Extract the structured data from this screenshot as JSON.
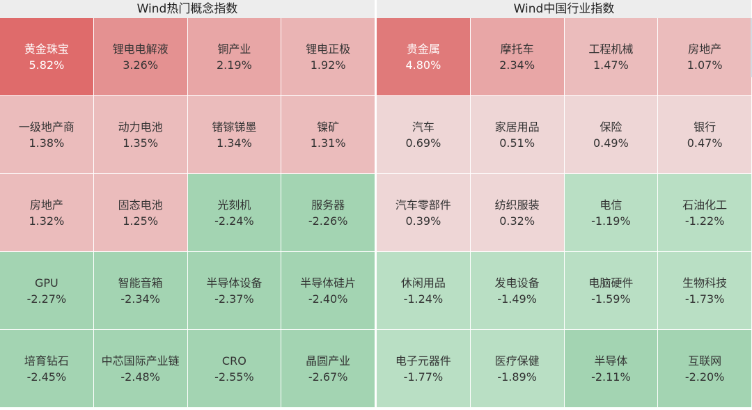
{
  "panels": [
    {
      "title": "Wind热门概念指数",
      "tiles": [
        {
          "name": "黄金珠宝",
          "change": "5.82%",
          "color": "#df6b6b",
          "light": true
        },
        {
          "name": "锂电电解液",
          "change": "3.26%",
          "color": "#e49191",
          "light": false
        },
        {
          "name": "铜产业",
          "change": "2.19%",
          "color": "#e8a6a6",
          "light": false
        },
        {
          "name": "锂电正极",
          "change": "1.92%",
          "color": "#eab4b4",
          "light": false
        },
        {
          "name": "一级地产商",
          "change": "1.38%",
          "color": "#ebbcbc",
          "light": false
        },
        {
          "name": "动力电池",
          "change": "1.35%",
          "color": "#ebbcbc",
          "light": false
        },
        {
          "name": "锗镓锑墨",
          "change": "1.34%",
          "color": "#ebbcbc",
          "light": false
        },
        {
          "name": "镍矿",
          "change": "1.31%",
          "color": "#ebbcbc",
          "light": false
        },
        {
          "name": "房地产",
          "change": "1.32%",
          "color": "#ebbcbc",
          "light": false
        },
        {
          "name": "固态电池",
          "change": "1.25%",
          "color": "#ebbcbc",
          "light": false
        },
        {
          "name": "光刻机",
          "change": "-2.24%",
          "color": "#a3d4b2",
          "light": false
        },
        {
          "name": "服务器",
          "change": "-2.26%",
          "color": "#a3d4b2",
          "light": false
        },
        {
          "name": "GPU",
          "change": "-2.27%",
          "color": "#a3d4b2",
          "light": false
        },
        {
          "name": "智能音箱",
          "change": "-2.34%",
          "color": "#a3d4b2",
          "light": false
        },
        {
          "name": "半导体设备",
          "change": "-2.37%",
          "color": "#a3d4b2",
          "light": false
        },
        {
          "name": "半导体硅片",
          "change": "-2.40%",
          "color": "#a3d4b2",
          "light": false
        },
        {
          "name": "培育钻石",
          "change": "-2.45%",
          "color": "#a3d4b2",
          "light": false
        },
        {
          "name": "中芯国际产业链",
          "change": "-2.48%",
          "color": "#a3d4b2",
          "light": false
        },
        {
          "name": "CRO",
          "change": "-2.55%",
          "color": "#a3d4b2",
          "light": false
        },
        {
          "name": "晶圆产业",
          "change": "-2.67%",
          "color": "#a3d4b2",
          "light": false
        }
      ]
    },
    {
      "title": "Wind中国行业指数",
      "tiles": [
        {
          "name": "贵金属",
          "change": "4.80%",
          "color": "#e07a7a",
          "light": true
        },
        {
          "name": "摩托车",
          "change": "2.34%",
          "color": "#e8a6a6",
          "light": false
        },
        {
          "name": "工程机械",
          "change": "1.47%",
          "color": "#ebbcbc",
          "light": false
        },
        {
          "name": "房地产",
          "change": "1.07%",
          "color": "#ebbcbc",
          "light": false
        },
        {
          "name": "汽车",
          "change": "0.69%",
          "color": "#eed6d6",
          "light": false
        },
        {
          "name": "家居用品",
          "change": "0.51%",
          "color": "#eed6d6",
          "light": false
        },
        {
          "name": "保险",
          "change": "0.49%",
          "color": "#eed6d6",
          "light": false
        },
        {
          "name": "银行",
          "change": "0.47%",
          "color": "#eed6d6",
          "light": false
        },
        {
          "name": "汽车零部件",
          "change": "0.39%",
          "color": "#eed6d6",
          "light": false
        },
        {
          "name": "纺织服装",
          "change": "0.32%",
          "color": "#eed6d6",
          "light": false
        },
        {
          "name": "电信",
          "change": "-1.19%",
          "color": "#b9dfc4",
          "light": false
        },
        {
          "name": "石油化工",
          "change": "-1.22%",
          "color": "#b9dfc4",
          "light": false
        },
        {
          "name": "休闲用品",
          "change": "-1.24%",
          "color": "#b9dfc4",
          "light": false
        },
        {
          "name": "发电设备",
          "change": "-1.49%",
          "color": "#b9dfc4",
          "light": false
        },
        {
          "name": "电脑硬件",
          "change": "-1.59%",
          "color": "#b9dfc4",
          "light": false
        },
        {
          "name": "生物科技",
          "change": "-1.73%",
          "color": "#b9dfc4",
          "light": false
        },
        {
          "name": "电子元器件",
          "change": "-1.77%",
          "color": "#b9dfc4",
          "light": false
        },
        {
          "name": "医疗保健",
          "change": "-1.89%",
          "color": "#b9dfc4",
          "light": false
        },
        {
          "name": "半导体",
          "change": "-2.11%",
          "color": "#a3d4b2",
          "light": false
        },
        {
          "name": "互联网",
          "change": "-2.20%",
          "color": "#a3d4b2",
          "light": false
        }
      ]
    }
  ]
}
